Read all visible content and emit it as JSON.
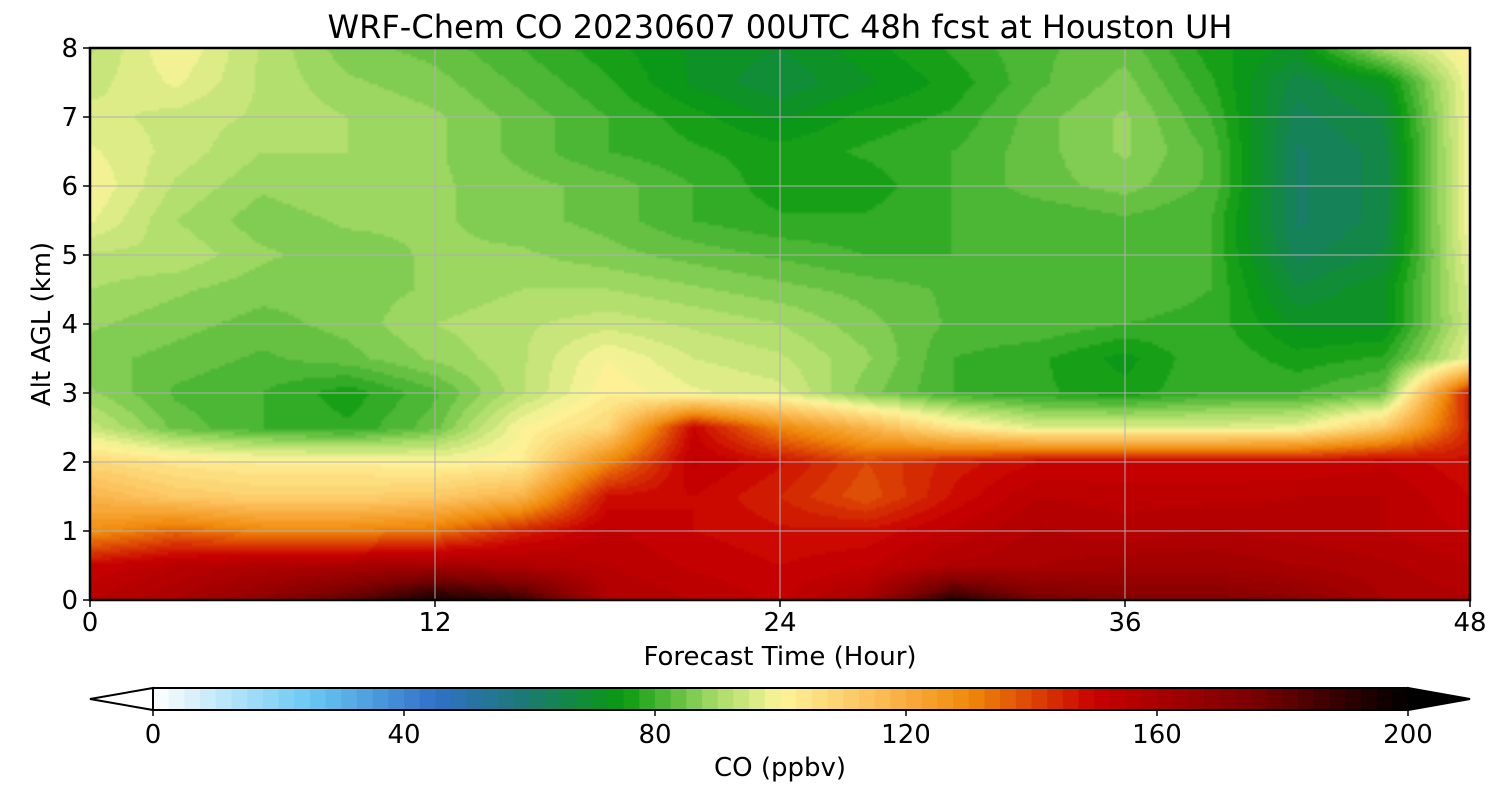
{
  "chart_data": {
    "type": "heatmap",
    "title": "WRF-Chem CO  20230607 00UTC 48h fcst at Houston UH",
    "xlabel": "Forecast Time (Hour)",
    "ylabel": "Alt AGL (km)",
    "xlim": [
      0,
      48
    ],
    "ylim": [
      0,
      8
    ],
    "x_ticks": [
      "0",
      "12",
      "24",
      "36",
      "48"
    ],
    "y_ticks": [
      "0",
      "1",
      "2",
      "3",
      "4",
      "5",
      "6",
      "7",
      "8"
    ],
    "grid": true,
    "colorbar": {
      "label": "CO  (ppbv)",
      "range": [
        0,
        200
      ],
      "ticks": [
        "0",
        "40",
        "80",
        "120",
        "160",
        "200"
      ],
      "extend": "both",
      "stops": [
        {
          "value": 0,
          "color": "#ffffff"
        },
        {
          "value": 25,
          "color": "#6ac8f4"
        },
        {
          "value": 45,
          "color": "#3070c8"
        },
        {
          "value": 60,
          "color": "#1a7a70"
        },
        {
          "value": 75,
          "color": "#0a9a10"
        },
        {
          "value": 90,
          "color": "#a8dc68"
        },
        {
          "value": 100,
          "color": "#fdf59a"
        },
        {
          "value": 115,
          "color": "#fcbe58"
        },
        {
          "value": 130,
          "color": "#f08a0a"
        },
        {
          "value": 150,
          "color": "#c80000"
        },
        {
          "value": 175,
          "color": "#7a0000"
        },
        {
          "value": 200,
          "color": "#000000"
        }
      ]
    },
    "field": {
      "units": "ppbv",
      "x_hours": [
        0,
        3,
        6,
        9,
        12,
        15,
        18,
        21,
        24,
        27,
        30,
        33,
        36,
        39,
        42,
        45,
        48
      ],
      "y_km": [
        0,
        0.5,
        1,
        1.5,
        2,
        2.5,
        3,
        3.5,
        4,
        4.5,
        5,
        5.5,
        6,
        6.5,
        7,
        7.5,
        8
      ],
      "values": [
        [
          155,
          160,
          168,
          180,
          196,
          188,
          158,
          155,
          152,
          160,
          192,
          175,
          172,
          172,
          168,
          160,
          158
        ],
        [
          150,
          155,
          158,
          160,
          162,
          158,
          155,
          152,
          150,
          152,
          158,
          160,
          162,
          162,
          160,
          158,
          155
        ],
        [
          128,
          135,
          130,
          130,
          133,
          145,
          153,
          150,
          148,
          148,
          153,
          158,
          156,
          158,
          156,
          155,
          152
        ],
        [
          118,
          112,
          110,
          110,
          112,
          118,
          148,
          150,
          145,
          138,
          148,
          155,
          154,
          154,
          155,
          155,
          150
        ],
        [
          108,
          104,
          102,
          102,
          100,
          102,
          130,
          153,
          148,
          140,
          146,
          150,
          150,
          150,
          150,
          152,
          148
        ],
        [
          94,
          84,
          80,
          78,
          84,
          100,
          108,
          150,
          130,
          118,
          104,
          96,
          96,
          96,
          98,
          112,
          145
        ],
        [
          88,
          82,
          80,
          76,
          82,
          92,
          102,
          98,
          96,
          86,
          80,
          78,
          76,
          80,
          80,
          84,
          148
        ],
        [
          86,
          84,
          82,
          84,
          88,
          92,
          100,
          95,
          93,
          88,
          80,
          78,
          74,
          80,
          76,
          78,
          98
        ],
        [
          88,
          86,
          84,
          86,
          90,
          92,
          94,
          92,
          90,
          86,
          82,
          82,
          80,
          79,
          72,
          72,
          95
        ],
        [
          90,
          88,
          86,
          86,
          88,
          90,
          90,
          88,
          86,
          84,
          82,
          82,
          82,
          80,
          68,
          72,
          96
        ],
        [
          92,
          92,
          88,
          86,
          88,
          88,
          86,
          84,
          82,
          80,
          80,
          80,
          82,
          80,
          64,
          68,
          98
        ],
        [
          98,
          90,
          86,
          88,
          88,
          86,
          84,
          80,
          78,
          78,
          80,
          80,
          82,
          80,
          62,
          66,
          100
        ],
        [
          100,
          92,
          88,
          90,
          88,
          86,
          84,
          80,
          76,
          76,
          80,
          84,
          86,
          82,
          62,
          66,
          100
        ],
        [
          98,
          94,
          90,
          90,
          88,
          84,
          80,
          78,
          76,
          78,
          80,
          84,
          88,
          82,
          62,
          66,
          100
        ],
        [
          96,
          94,
          92,
          90,
          88,
          84,
          80,
          76,
          72,
          76,
          78,
          84,
          88,
          80,
          64,
          68,
          100
        ],
        [
          94,
          98,
          92,
          88,
          86,
          82,
          78,
          72,
          68,
          72,
          76,
          82,
          86,
          78,
          66,
          72,
          100
        ],
        [
          92,
          100,
          92,
          86,
          84,
          80,
          76,
          72,
          70,
          74,
          78,
          82,
          84,
          76,
          72,
          90,
          102
        ]
      ]
    }
  }
}
